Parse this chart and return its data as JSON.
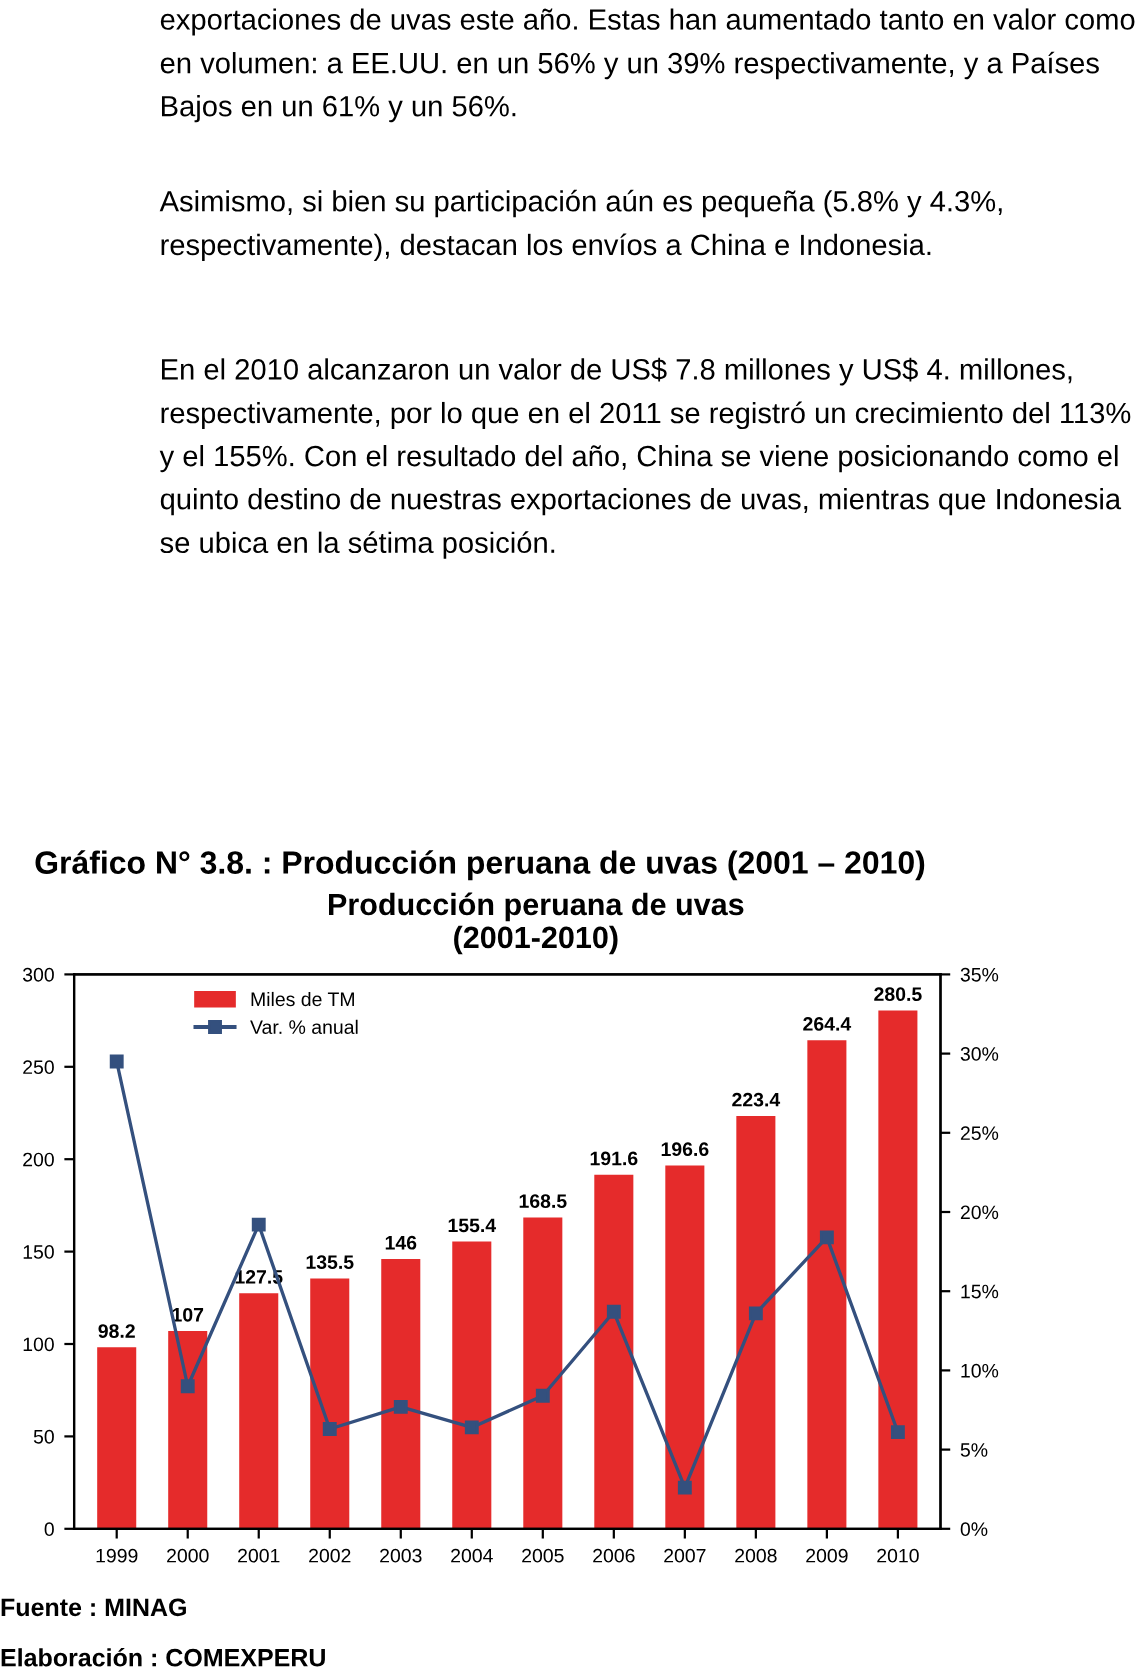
{
  "chart_data": {
    "type": "bar",
    "title": "Producción peruana de uvas\n(2001-2010)",
    "categories": [
      "1999",
      "2000",
      "2001",
      "2002",
      "2003",
      "2004",
      "2005",
      "2006",
      "2007",
      "2008",
      "2009",
      "2010"
    ],
    "series": [
      {
        "name": "Miles de TM",
        "color": "#e52b2b",
        "values": [
          98.2,
          107,
          127.5,
          135.5,
          146,
          155.4,
          168.5,
          191.6,
          196.6,
          223.4,
          264.4,
          280.5
        ],
        "value_labels": [
          "98.2",
          "107",
          "127.5",
          "135.5",
          "146",
          "155.4",
          "168.5",
          "191.6",
          "196.6",
          "223.4",
          "264.4",
          "280.5"
        ]
      },
      {
        "name": "Var. % anual",
        "type": "line",
        "axis": "y2",
        "color": "#34507e",
        "marker": "square",
        "values": [
          29.5,
          9.0,
          19.2,
          6.3,
          7.7,
          6.4,
          8.4,
          13.7,
          2.6,
          13.6,
          18.4,
          6.1
        ]
      }
    ],
    "ylim": [
      0,
      300
    ],
    "yticks": [
      0,
      50,
      100,
      150,
      200,
      250,
      300
    ],
    "y2lim": [
      0,
      35
    ],
    "y2ticks": [
      {
        "value": 0,
        "label": "0%"
      },
      {
        "value": 5,
        "label": "5%"
      },
      {
        "value": 10,
        "label": "10%"
      },
      {
        "value": 15,
        "label": "15%"
      },
      {
        "value": 20,
        "label": "20%"
      },
      {
        "value": 25,
        "label": "25%"
      },
      {
        "value": 30,
        "label": "30%"
      },
      {
        "value": 35,
        "label": "35%"
      }
    ],
    "grid": false,
    "legend": "top left",
    "annotations": [
      "exportaciones de uvas este año. Estas han aumentado tanto en valor como en volumen: a EE.UU. en un 56% y un 39% respectivamente, y a Países Bajos en un 61% y un 56%.",
      "Asimismo, si bien su participación aún es pequeña (5.8% y 4.3%, respectivamente), destacan los envíos a China e Indonesia.",
      "En el 2010 alcanzaron un valor de US$ 7.8 millones y US$ 4. millones, respectivamente, por lo que en el 2011 se registró un crecimiento del 113% y el 155%. Con el resultado del año, China se viene posicionando como el quinto destino de nuestras exportaciones de uvas, mientras que Indonesia se ubica en la sétima posición.",
      "Gráfico N° 3.8. : Producción peruana de uvas (2001 – 2010)",
      "Fuente : MINAG",
      "Elaboración : COMEXPERU"
    ]
  }
}
